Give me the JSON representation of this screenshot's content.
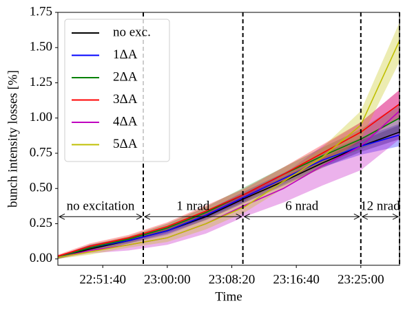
{
  "chart_data": {
    "type": "line",
    "x_label": "Time",
    "y_label": "bunch intensity losses [%]",
    "x": [
      "22:45:52",
      "22:50:00",
      "22:55:00",
      "23:00:00",
      "23:05:00",
      "23:10:00",
      "23:15:00",
      "23:20:00",
      "23:25:00",
      "23:30:00"
    ],
    "xlim": [
      "22:45:52",
      "23:30:00"
    ],
    "xticks": [
      "22:51:40",
      "23:00:00",
      "23:08:20",
      "23:16:40",
      "23:25:00"
    ],
    "ylim": [
      -0.045,
      1.75
    ],
    "yticks": [
      {
        "value": 0,
        "label": "0.00"
      },
      0.25,
      {
        "value": 0.5,
        "label": "0.50"
      },
      0.75,
      {
        "value": 1,
        "label": "1.00"
      },
      1.25,
      {
        "value": 1.5,
        "label": "1.50"
      },
      1.75
    ],
    "legend": "upper left",
    "vlines": [
      "22:56:54",
      "23:09:46",
      "23:25:00",
      "23:30:00"
    ],
    "annotations": [
      {
        "text": "no excitation",
        "x_start": "22:45:52",
        "x_end": "22:56:54",
        "y": 0.3
      },
      {
        "text": "1 nrad",
        "x_start": "22:56:54",
        "x_end": "23:09:46",
        "y": 0.3
      },
      {
        "text": "6 nrad",
        "x_start": "23:09:46",
        "x_end": "23:25:00",
        "y": 0.3
      },
      {
        "text": "12 nrad",
        "x_start": "23:25:00",
        "x_end": "23:30:00",
        "y": 0.3
      }
    ],
    "series": [
      {
        "name": "no exc.",
        "color": "#000000",
        "values": [
          0.01,
          0.07,
          0.13,
          0.2,
          0.3,
          0.43,
          0.55,
          0.68,
          0.8,
          0.9
        ],
        "lower": [
          0,
          0.055,
          0.11,
          0.18,
          0.275,
          0.4,
          0.52,
          0.645,
          0.76,
          0.85
        ],
        "upper": [
          0.02,
          0.085,
          0.15,
          0.22,
          0.325,
          0.46,
          0.58,
          0.715,
          0.84,
          0.95
        ]
      },
      {
        "name": "1ΔA",
        "color": "#0000ff",
        "values": [
          0.01,
          0.08,
          0.13,
          0.2,
          0.31,
          0.44,
          0.57,
          0.7,
          0.8,
          0.88
        ],
        "lower": [
          0,
          0.06,
          0.11,
          0.17,
          0.28,
          0.4,
          0.53,
          0.65,
          0.74,
          0.8
        ],
        "upper": [
          0.02,
          0.1,
          0.15,
          0.23,
          0.34,
          0.48,
          0.61,
          0.75,
          0.86,
          0.96
        ]
      },
      {
        "name": "2ΔA",
        "color": "#008000",
        "values": [
          0.01,
          0.08,
          0.14,
          0.22,
          0.33,
          0.46,
          0.6,
          0.73,
          0.85,
          1.0
        ],
        "lower": [
          0,
          0.06,
          0.12,
          0.19,
          0.29,
          0.41,
          0.55,
          0.67,
          0.78,
          0.9
        ],
        "upper": [
          0.02,
          0.1,
          0.16,
          0.25,
          0.37,
          0.51,
          0.65,
          0.79,
          0.92,
          1.1
        ]
      },
      {
        "name": "3ΔA",
        "color": "#ff0000",
        "values": [
          0.02,
          0.09,
          0.15,
          0.23,
          0.34,
          0.46,
          0.6,
          0.75,
          0.9,
          1.1
        ],
        "lower": [
          0.01,
          0.07,
          0.13,
          0.2,
          0.3,
          0.42,
          0.55,
          0.69,
          0.83,
          1.0
        ],
        "upper": [
          0.03,
          0.11,
          0.17,
          0.26,
          0.38,
          0.5,
          0.65,
          0.81,
          0.97,
          1.2
        ]
      },
      {
        "name": "4ΔA",
        "color": "#bf00bf",
        "values": [
          0.01,
          0.06,
          0.1,
          0.15,
          0.25,
          0.38,
          0.5,
          0.66,
          0.8,
          1.05
        ],
        "lower": [
          0,
          0.04,
          0.06,
          0.1,
          0.18,
          0.3,
          0.4,
          0.52,
          0.63,
          0.85
        ],
        "upper": [
          0.02,
          0.08,
          0.14,
          0.2,
          0.32,
          0.46,
          0.6,
          0.8,
          0.97,
          1.2
        ]
      },
      {
        "name": "5ΔA",
        "color": "#bfbf00",
        "values": [
          0.01,
          0.05,
          0.1,
          0.15,
          0.25,
          0.37,
          0.55,
          0.72,
          0.95,
          1.55
        ],
        "lower": [
          0,
          0.03,
          0.08,
          0.12,
          0.21,
          0.33,
          0.5,
          0.65,
          0.85,
          1.4
        ],
        "upper": [
          0.02,
          0.07,
          0.12,
          0.18,
          0.29,
          0.41,
          0.6,
          0.79,
          1.05,
          1.68
        ]
      }
    ]
  }
}
